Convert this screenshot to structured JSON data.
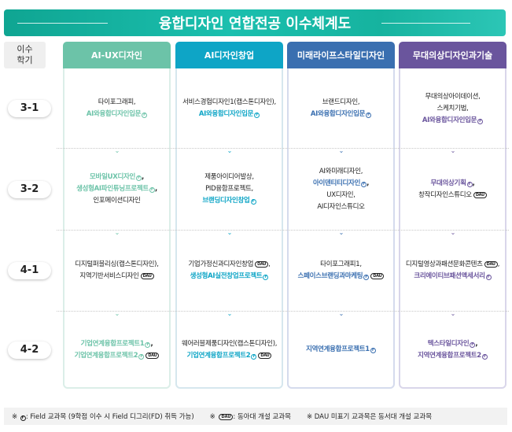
{
  "title": "융합디자인 연합전공 이수체계도",
  "semester_header": {
    "line1": "이수",
    "line2": "학기"
  },
  "semesters": [
    "3-1",
    "3-2",
    "4-1",
    "4-2"
  ],
  "colors": {
    "title": "#13a994",
    "field_accent": [
      "#6cc3a8",
      "#0ea5c6",
      "#3a6fb0",
      "#6a559d"
    ]
  },
  "columns": [
    {
      "label": "AI-UX디자인",
      "color": "#6cc3a8",
      "border": "#dbeee8",
      "cells": [
        [
          {
            "text": "타이포그래피",
            "sep": ","
          },
          {
            "text": "AI와융합디자인입문",
            "accent": true,
            "field": true
          }
        ],
        [
          {
            "text": "모바일UX디자인",
            "accent": true,
            "field": true,
            "sep": ","
          },
          {
            "text": "생성형AI파인튜닝프로젝트",
            "accent": true,
            "field": true,
            "sep": ","
          },
          {
            "text": "인포메이션디자인"
          }
        ],
        [
          {
            "text": "디지털퍼블리싱(캡스톤디자인)",
            "sep": ","
          },
          {
            "text": "지역기반서비스디자인",
            "dau": true
          }
        ],
        [
          {
            "text": "기업연계융합프로젝트1",
            "accent": true,
            "field": true,
            "sep": ","
          },
          {
            "text": "기업연계융합프로젝트2",
            "accent": true,
            "field": true,
            "dau": true
          }
        ]
      ]
    },
    {
      "label": "AI디자인창업",
      "color": "#0ea5c6",
      "border": "#d6e7ee",
      "cells": [
        [
          {
            "text": "서비스경험디자인1(캡스톤디자인)",
            "sep": ","
          },
          {
            "text": "AI와융합디자인입문",
            "accent": true,
            "field": true
          }
        ],
        [
          {
            "text": "제품아이디어발상",
            "sep": ","
          },
          {
            "text": "PID융합프로젝트",
            "sep": ","
          },
          {
            "text": "브랜딩디자인창업",
            "accent": true,
            "field": true
          }
        ],
        [
          {
            "text": "기업가정신과디자인창업",
            "dau": true,
            "sep": ","
          },
          {
            "text": "생성형AI실전창업프로젝트",
            "accent": true,
            "field": true
          }
        ],
        [
          {
            "text": "웨어러블제품디자인(캡스톤디자인)",
            "sep": ","
          },
          {
            "text": "기업연계융합프로젝트2",
            "accent": true,
            "field": true,
            "dau": true
          }
        ]
      ]
    },
    {
      "label": "미래라이프스타일디자인",
      "color": "#3a6fb0",
      "border": "#d5dbed",
      "cells": [
        [
          {
            "text": "브랜드디자인",
            "sep": ","
          },
          {
            "text": "AI와융합디자인입문",
            "accent": true,
            "field": true
          }
        ],
        [
          {
            "text": "AI와미래디자인",
            "sep": ","
          },
          {
            "text": "아이덴티티디자인",
            "accent": true,
            "field": true,
            "sep": ","
          },
          {
            "text": "UX디자인",
            "sep": ","
          },
          {
            "text": "AI디자인스튜디오"
          }
        ],
        [
          {
            "text": "타이포그래피1",
            "sep": ","
          },
          {
            "text": "스페이스브랜딩과마케팅",
            "accent": true,
            "field": true,
            "dau": true
          }
        ],
        [
          {
            "text": "지역연계융합프로젝트1",
            "accent": true,
            "field": true
          }
        ]
      ]
    },
    {
      "label": "무대의상디자인과기술",
      "color": "#6a559d",
      "border": "#d9d6ea",
      "cells": [
        [
          {
            "text": "무대의상아이데이션",
            "sep": ","
          },
          {
            "text": "스케치기법",
            "sep": ","
          },
          {
            "text": "AI와융합디자인입문",
            "accent": true,
            "field": true
          }
        ],
        [
          {
            "text": "무대의상기획",
            "accent": true,
            "field": true,
            "sep": ","
          },
          {
            "text": "창작디자인스튜디오",
            "dau": true
          }
        ],
        [
          {
            "text": "디지털영상과패션문화콘텐츠",
            "dau": true,
            "sep": ","
          },
          {
            "text": "크리에이티브패션액세서리",
            "accent": true,
            "field": true
          }
        ],
        [
          {
            "text": "텍스타일디자인",
            "accent": true,
            "field": true,
            "sep": ","
          },
          {
            "text": "지역연계융합프로젝트2",
            "accent": true,
            "field": true
          }
        ]
      ]
    }
  ],
  "badges": {
    "field": "F",
    "dau": "DAU"
  },
  "footer": {
    "note1_prefix": "※",
    "note1": ": Field 교과목 (9학점 이수 시 Field 디그리(FD) 취득 가능)",
    "note2_prefix": "※",
    "note2": ": 동아대 개설 교과목",
    "note3": "※ DAU 미표기 교과목은  동서대 개설 교과목"
  }
}
